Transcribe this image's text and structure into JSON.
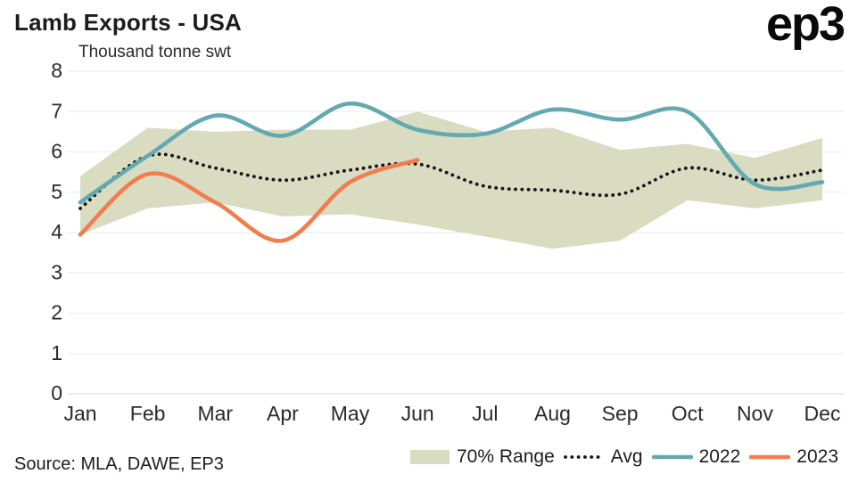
{
  "chart_data": {
    "type": "line",
    "title": "Lamb Exports - USA",
    "subtitle": "Thousand tonne swt",
    "source": "Source: MLA, DAWE, EP3",
    "logo_text": "ep3",
    "categories": [
      "Jan",
      "Feb",
      "Mar",
      "Apr",
      "May",
      "Jun",
      "Jul",
      "Aug",
      "Sep",
      "Oct",
      "Nov",
      "Dec"
    ],
    "ylim": [
      0,
      8
    ],
    "yticks": [
      0,
      1,
      2,
      3,
      4,
      5,
      6,
      7,
      8
    ],
    "grid": "horizontal",
    "grid_color": "#ebebeb",
    "baseline_color": "#dddddd",
    "axis_text_color": "#2a2a2a",
    "legend_position": "bottom-right",
    "band": {
      "name": "70% Range",
      "color": "#d9dcc1",
      "upper": [
        5.4,
        6.6,
        6.5,
        6.55,
        6.55,
        7.0,
        6.5,
        6.6,
        6.05,
        6.2,
        5.85,
        6.35
      ],
      "lower": [
        3.95,
        4.6,
        4.75,
        4.4,
        4.45,
        4.2,
        3.9,
        3.6,
        3.8,
        4.8,
        4.6,
        4.8
      ]
    },
    "series": [
      {
        "name": "Avg",
        "style": "dotted",
        "color": "#161616",
        "values": [
          4.6,
          5.9,
          5.6,
          5.3,
          5.55,
          5.7,
          5.15,
          5.05,
          4.95,
          5.6,
          5.3,
          5.55
        ]
      },
      {
        "name": "2022",
        "style": "solid",
        "color": "#64a9b1",
        "values": [
          4.75,
          5.9,
          6.9,
          6.4,
          7.2,
          6.55,
          6.45,
          7.05,
          6.8,
          7.0,
          5.2,
          5.25
        ]
      },
      {
        "name": "2023",
        "style": "solid",
        "color": "#f07e4e",
        "values": [
          3.95,
          5.45,
          4.75,
          3.8,
          5.25,
          5.8,
          null,
          null,
          null,
          null,
          null,
          null
        ]
      }
    ]
  }
}
